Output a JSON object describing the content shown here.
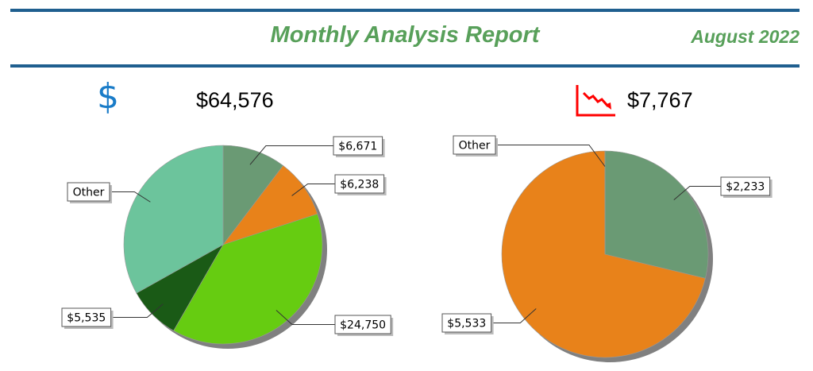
{
  "header": {
    "title": "Monthly Analysis Report",
    "date": "August 2022"
  },
  "kpis": [
    {
      "icon": "dollar-icon",
      "value": "$64,576",
      "color": "#1a7cc8"
    },
    {
      "icon": "declining-chart-icon",
      "value": "$7,767",
      "color": "#ff0000"
    }
  ],
  "colors": {
    "rule": "#1f5f8f",
    "title": "#58a05a"
  },
  "chart_data": [
    {
      "type": "pie",
      "total_label": "$64,576",
      "slices": [
        {
          "label": "$6,671",
          "value": 6671,
          "color": "#6a9a74"
        },
        {
          "label": "$6,238",
          "value": 6238,
          "color": "#e8821a"
        },
        {
          "label": "$24,750",
          "value": 24750,
          "color": "#66cc11"
        },
        {
          "label": "$5,535",
          "value": 5535,
          "color": "#1a5a16"
        },
        {
          "label": "Other",
          "value": 21382,
          "color": "#6cc49c"
        }
      ]
    },
    {
      "type": "pie",
      "total_label": "$7,767",
      "slices": [
        {
          "label": "$2,233",
          "value": 2233,
          "color": "#6a9a74"
        },
        {
          "label": "$5,533",
          "value": 5533,
          "color": "#e8821a"
        },
        {
          "label": "Other",
          "value": 1,
          "color": "#6cc49c"
        }
      ]
    }
  ]
}
